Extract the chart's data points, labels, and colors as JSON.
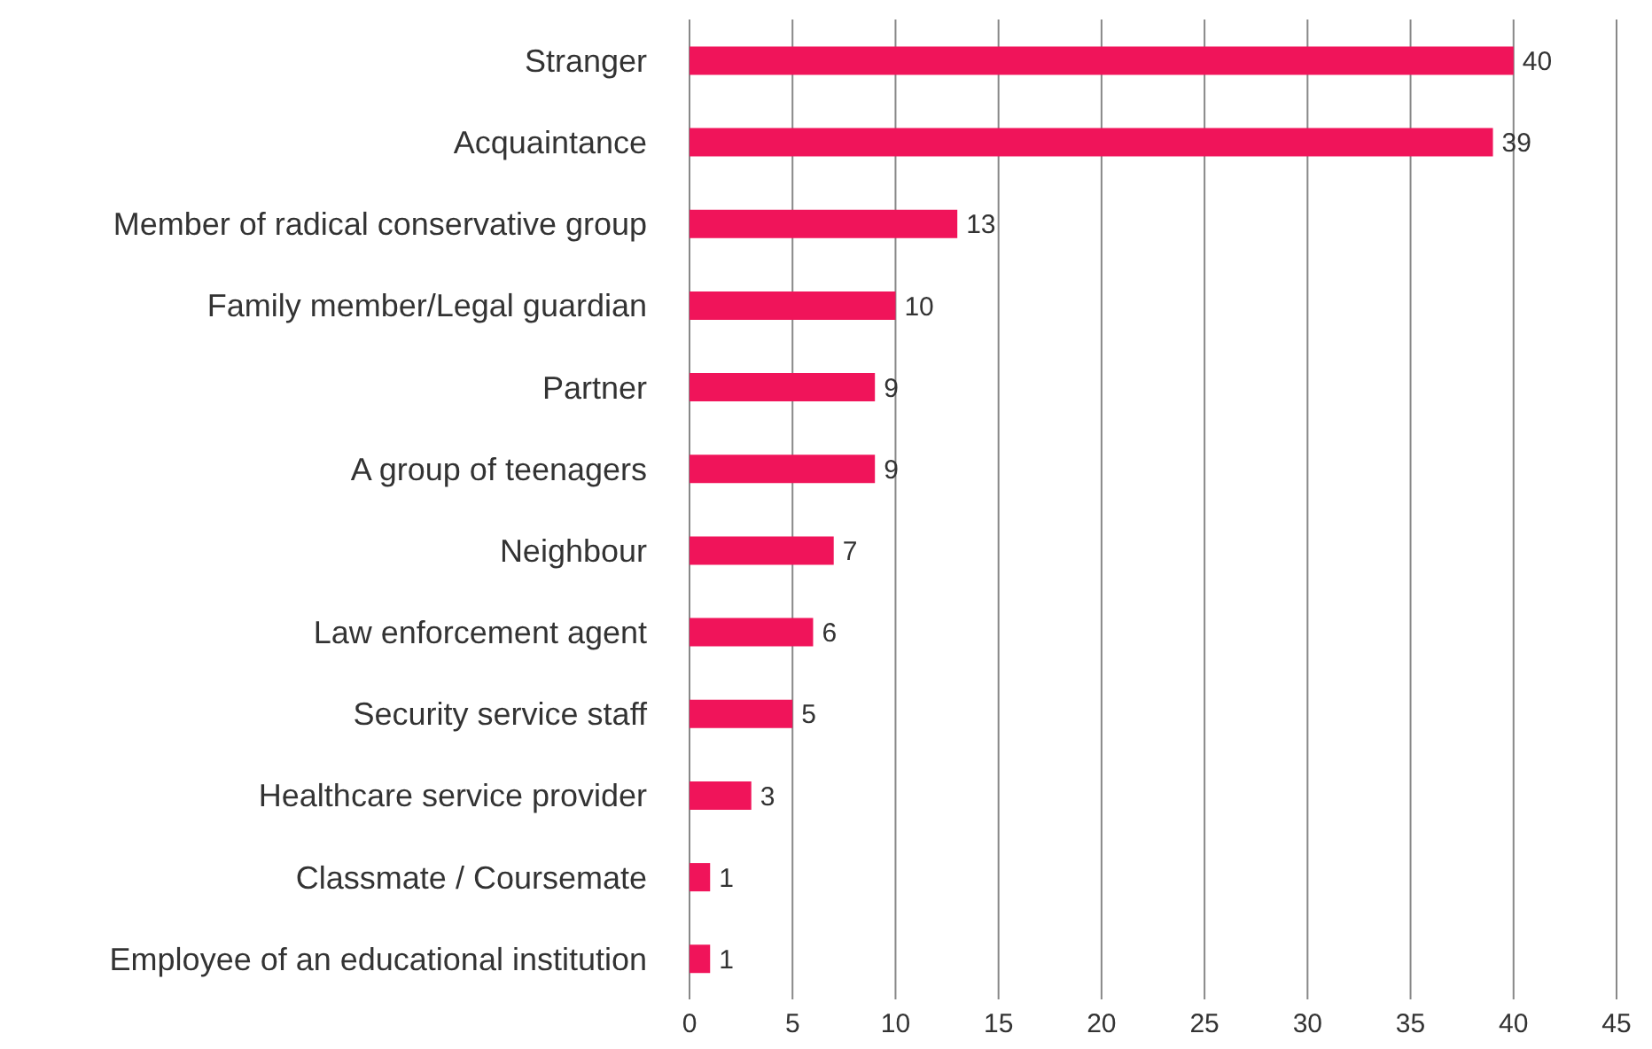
{
  "chart_data": {
    "type": "bar",
    "orientation": "horizontal",
    "categories": [
      "Stranger",
      "Acquaintance",
      "Member of radical conservative group",
      "Family member/Legal guardian",
      "Partner",
      "A group of teenagers",
      "Neighbour",
      "Law enforcement agent",
      "Security service staff",
      "Healthcare service provider",
      "Classmate / Coursemate",
      "Employee of an educational institution"
    ],
    "values": [
      40,
      39,
      13,
      10,
      9,
      9,
      7,
      6,
      5,
      3,
      1,
      1
    ],
    "color": "#f0145a",
    "xlim": [
      0,
      45
    ],
    "xticks": [
      0,
      5,
      10,
      15,
      20,
      25,
      30,
      35,
      40,
      45
    ],
    "grid": "x",
    "data_labels": true
  }
}
